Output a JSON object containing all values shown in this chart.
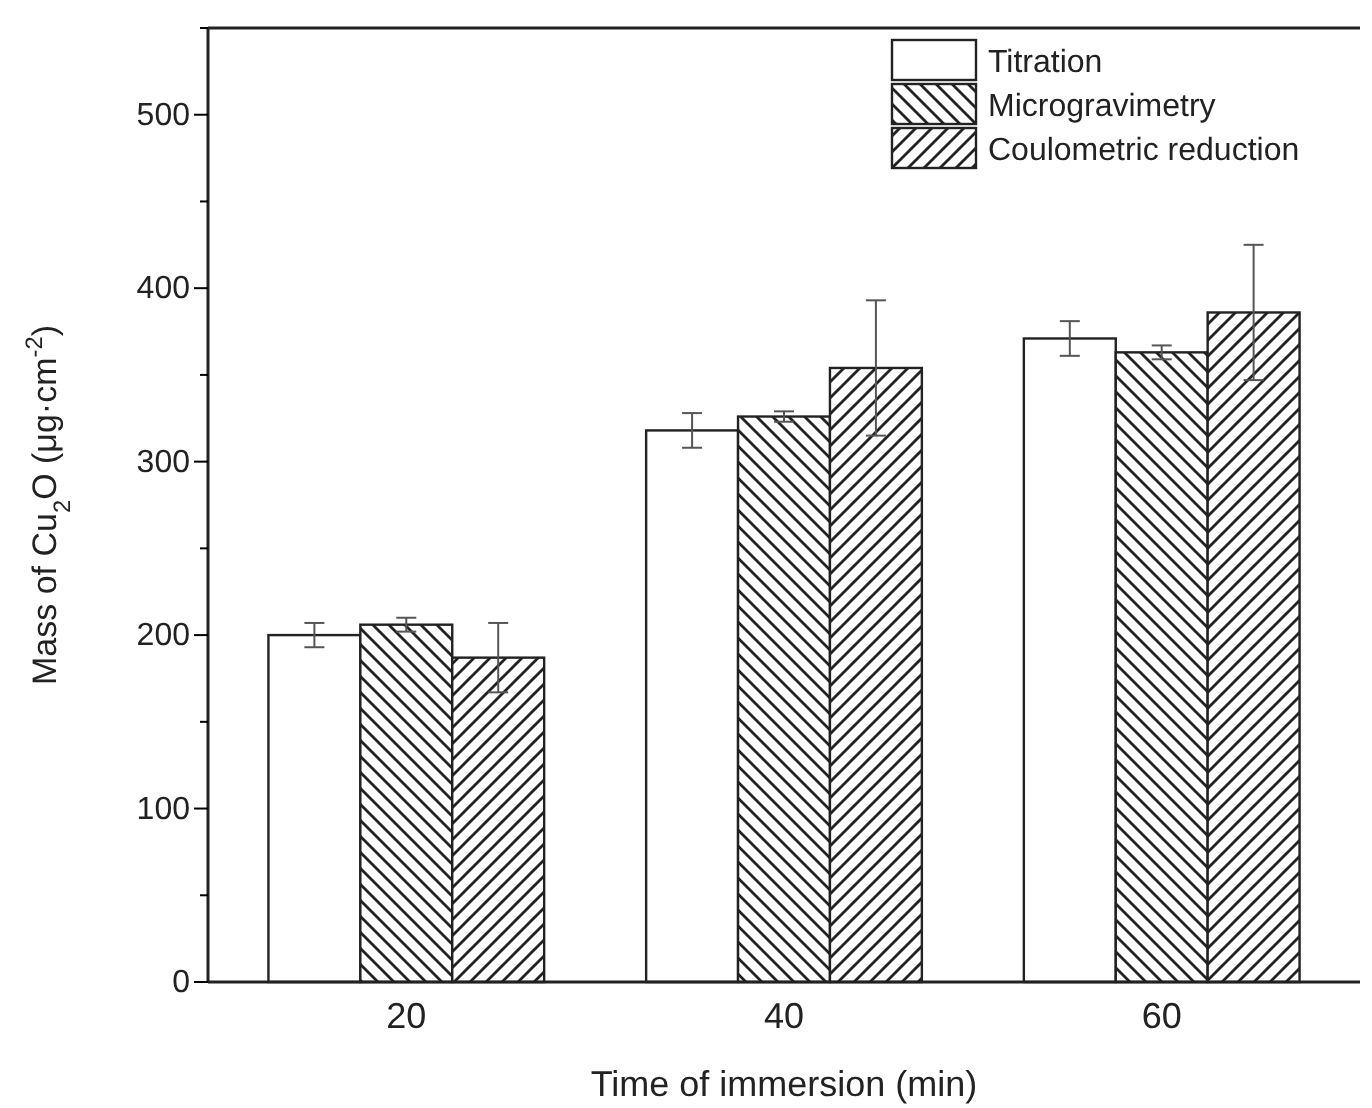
{
  "chart_data": {
    "type": "bar",
    "xlabel": "Time of immersion (min)",
    "ylabel": "Mass of Cu$_{2}$O (μg·cm$^{-2}$)",
    "categories": [
      "20",
      "40",
      "60"
    ],
    "series": [
      {
        "name": "Titration",
        "color": "#ffffff",
        "values": [
          200,
          318,
          371
        ],
        "errors": [
          7,
          10,
          10
        ]
      },
      {
        "name": "Microgravimetry",
        "color": "#222222",
        "values": [
          206,
          326,
          363
        ],
        "errors": [
          4,
          3,
          4
        ]
      },
      {
        "name": "Coulometric reduction",
        "color": "#222222",
        "values": [
          187,
          354,
          386
        ],
        "errors": [
          20,
          39,
          39
        ]
      }
    ],
    "ylim": [
      0,
      550
    ],
    "yticks": [
      0,
      {
        "value": 50,
        "label": null
      },
      100,
      {
        "value": 150,
        "label": null
      },
      200,
      {
        "value": 250,
        "label": null
      },
      300,
      {
        "value": 350,
        "label": null
      },
      400,
      {
        "value": 450,
        "label": null
      },
      500,
      {
        "value": 550,
        "label": null
      }
    ],
    "legend": "top right",
    "grid": false
  }
}
